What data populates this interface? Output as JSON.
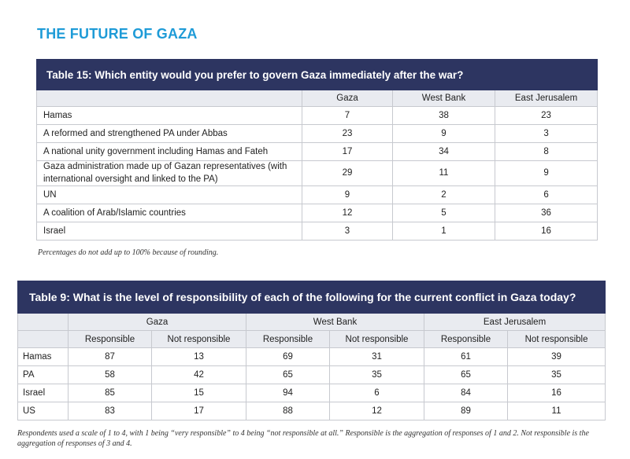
{
  "page_title": "THE FUTURE OF GAZA",
  "table15": {
    "title": "Table 15: Which entity would you prefer to govern Gaza immediately after the war?",
    "columns": [
      "Gaza",
      "West Bank",
      "East Jerusalem"
    ],
    "rows": [
      {
        "label": "Hamas",
        "values": [
          "7",
          "38",
          "23"
        ]
      },
      {
        "label": "A reformed and strengthened PA under Abbas",
        "values": [
          "23",
          "9",
          "3"
        ]
      },
      {
        "label": "A national unity government including Hamas and Fateh",
        "values": [
          "17",
          "34",
          "8"
        ]
      },
      {
        "label": "Gaza administration made up of Gazan representatives (with international oversight and linked to the PA)",
        "values": [
          "29",
          "11",
          "9"
        ]
      },
      {
        "label": "UN",
        "values": [
          "9",
          "2",
          "6"
        ]
      },
      {
        "label": "A coalition of Arab/Islamic countries",
        "values": [
          "12",
          "5",
          "36"
        ]
      },
      {
        "label": "Israel",
        "values": [
          "3",
          "1",
          "16"
        ]
      }
    ],
    "note": "Percentages do not add up to 100% because of rounding."
  },
  "table9": {
    "title": "Table 9: What is the level of responsibility of each of the following for the current conflict in Gaza today?",
    "groups": [
      "Gaza",
      "West Bank",
      "East Jerusalem"
    ],
    "subcolumns": [
      "Responsible",
      "Not responsible",
      "Responsible",
      "Not responsible",
      "Responsible",
      "Not responsible"
    ],
    "rows": [
      {
        "label": "Hamas",
        "values": [
          "87",
          "13",
          "69",
          "31",
          "61",
          "39"
        ]
      },
      {
        "label": "PA",
        "values": [
          "58",
          "42",
          "65",
          "35",
          "65",
          "35"
        ]
      },
      {
        "label": "Israel",
        "values": [
          "85",
          "15",
          "94",
          "6",
          "84",
          "16"
        ]
      },
      {
        "label": "US",
        "values": [
          "83",
          "17",
          "88",
          "12",
          "89",
          "11"
        ]
      }
    ],
    "note": "Respondents used a scale of 1 to 4, with 1 being “very responsible” to 4 being “not responsible at all.” Responsible is the aggregation of responses of 1 and 2. Not responsible is the aggregation of responses of 3 and 4."
  }
}
